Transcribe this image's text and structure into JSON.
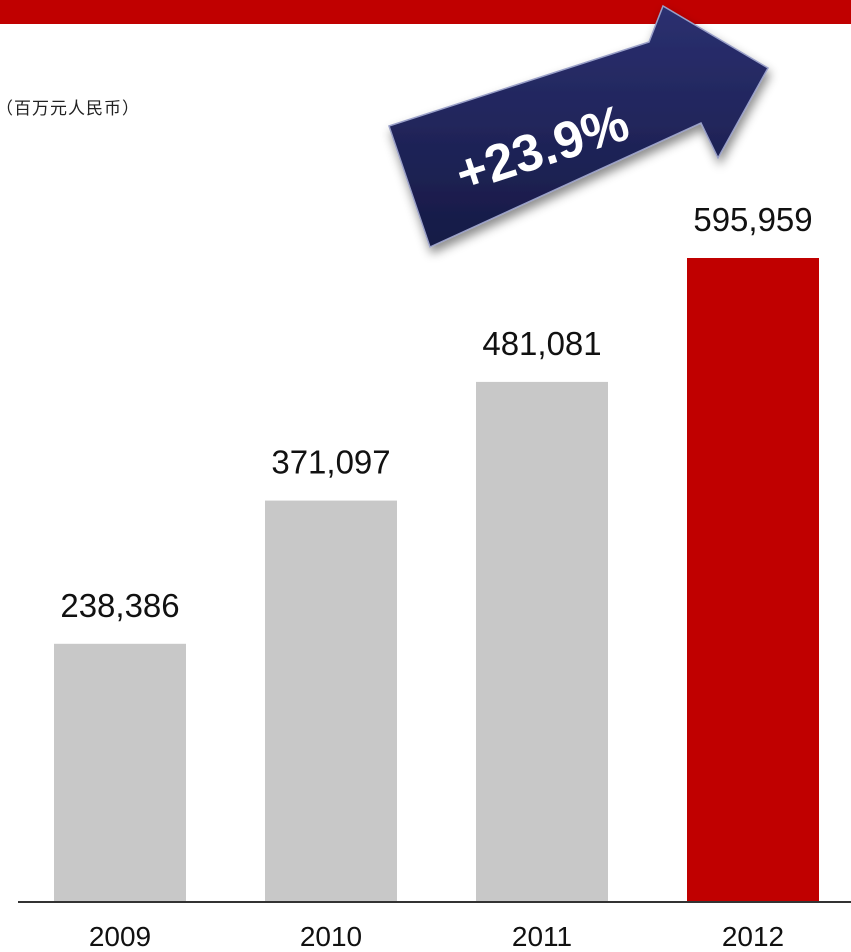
{
  "unit": "（百万元人民币）",
  "growth": {
    "label": "+23.9%",
    "arrow_color": "#1f2356"
  },
  "colors": {
    "header_band": "#c00000",
    "bar_default": "#c8c8c8",
    "bar_highlight": "#c00000",
    "axis": "#333333"
  },
  "chart_data": {
    "type": "bar",
    "title": "",
    "xlabel": "",
    "ylabel": "",
    "categories": [
      "2009",
      "2010",
      "2011",
      "2012"
    ],
    "values": [
      238386,
      371097,
      481081,
      595959
    ],
    "value_labels": [
      "238,386",
      "371,097",
      "481,081",
      "595,959"
    ],
    "highlight_category": "2012",
    "grid": false,
    "legend": "none"
  }
}
